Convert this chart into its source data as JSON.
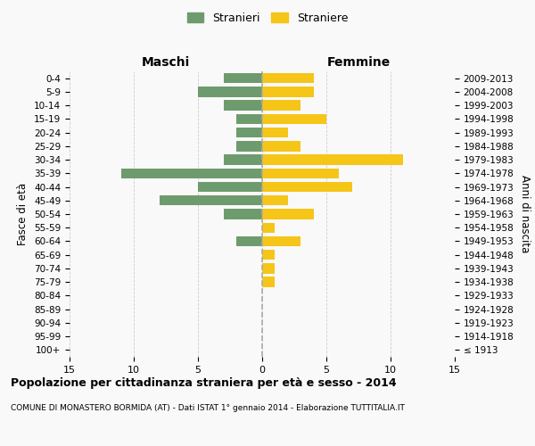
{
  "age_groups": [
    "100+",
    "95-99",
    "90-94",
    "85-89",
    "80-84",
    "75-79",
    "70-74",
    "65-69",
    "60-64",
    "55-59",
    "50-54",
    "45-49",
    "40-44",
    "35-39",
    "30-34",
    "25-29",
    "20-24",
    "15-19",
    "10-14",
    "5-9",
    "0-4"
  ],
  "birth_years": [
    "≤ 1913",
    "1914-1918",
    "1919-1923",
    "1924-1928",
    "1929-1933",
    "1934-1938",
    "1939-1943",
    "1944-1948",
    "1949-1953",
    "1954-1958",
    "1959-1963",
    "1964-1968",
    "1969-1973",
    "1974-1978",
    "1979-1983",
    "1984-1988",
    "1989-1993",
    "1994-1998",
    "1999-2003",
    "2004-2008",
    "2009-2013"
  ],
  "maschi": [
    0,
    0,
    0,
    0,
    0,
    0,
    0,
    0,
    2,
    0,
    3,
    8,
    5,
    11,
    3,
    2,
    2,
    2,
    3,
    5,
    3
  ],
  "femmine": [
    0,
    0,
    0,
    0,
    0,
    1,
    1,
    1,
    3,
    1,
    4,
    2,
    7,
    6,
    11,
    3,
    2,
    5,
    3,
    4,
    4
  ],
  "maschi_color": "#6e9b6e",
  "femmine_color": "#f5c518",
  "bg_color": "#f9f9f9",
  "grid_color": "#cccccc",
  "center_line_color": "#aaaaaa",
  "title": "Popolazione per cittadinanza straniera per età e sesso - 2014",
  "subtitle": "COMUNE DI MONASTERO BORMIDA (AT) - Dati ISTAT 1° gennaio 2014 - Elaborazione TUTTITALIA.IT",
  "ylabel_left": "Fasce di età",
  "ylabel_right": "Anni di nascita",
  "xlabel_left": "Maschi",
  "xlabel_right": "Femmine",
  "legend_maschi": "Stranieri",
  "legend_femmine": "Straniere",
  "xlim": 15
}
